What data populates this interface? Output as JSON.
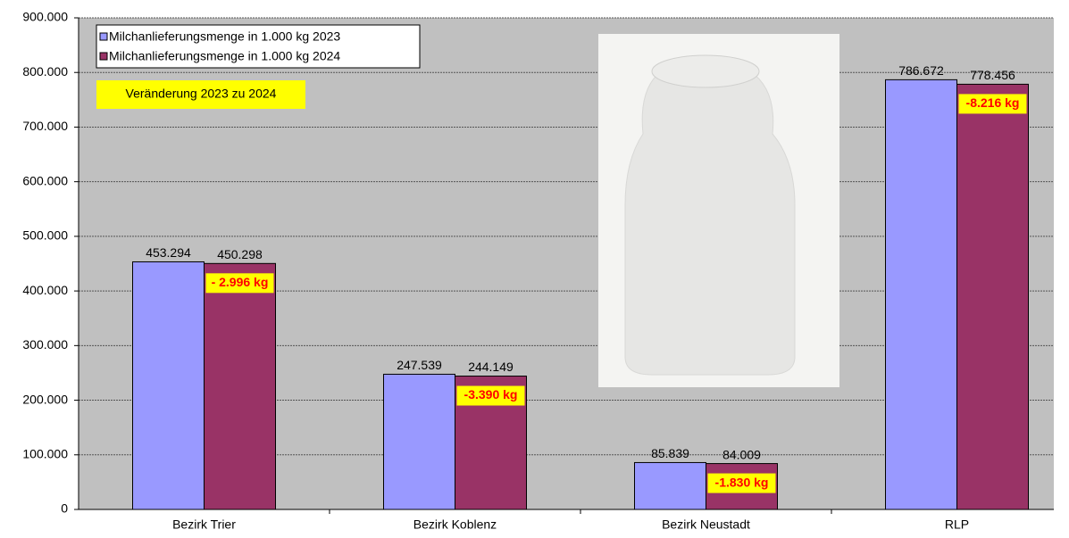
{
  "chart_data": {
    "type": "bar",
    "categories": [
      "Bezirk Trier",
      "Bezirk Koblenz",
      "Bezirk Neustadt",
      "RLP"
    ],
    "series": [
      {
        "name": "Milchanlieferungsmenge in 1.000 kg 2023",
        "color": "#9999ff",
        "values": [
          453294,
          247539,
          85839,
          786672
        ],
        "value_labels": [
          "453.294",
          "247.539",
          "85.839",
          "786.672"
        ]
      },
      {
        "name": "Milchanlieferungsmenge in 1.000 kg 2024",
        "color": "#993366",
        "values": [
          450298,
          244149,
          84009,
          778456
        ],
        "value_labels": [
          "450.298",
          "244.149",
          "84.009",
          "778.456"
        ]
      }
    ],
    "annotations": [
      "- 2.996 kg",
      "-3.390 kg",
      "-1.830 kg",
      "-8.216 kg"
    ],
    "note": "Veränderung 2023 zu 2024",
    "ylim": [
      0,
      900000
    ],
    "yticks": [
      0,
      {
        "value": 100000,
        "label": "100.000"
      },
      {
        "value": 200000,
        "label": "200.000"
      },
      {
        "value": 300000,
        "label": "300.000"
      },
      {
        "value": 400000,
        "label": "400.000"
      },
      {
        "value": 500000,
        "label": "500.000"
      },
      {
        "value": 600000,
        "label": "600.000"
      },
      {
        "value": 700000,
        "label": "700.000"
      },
      {
        "value": 800000,
        "label": "800.000"
      },
      {
        "value": 900000,
        "label": "900.000"
      }
    ],
    "grid": true
  }
}
